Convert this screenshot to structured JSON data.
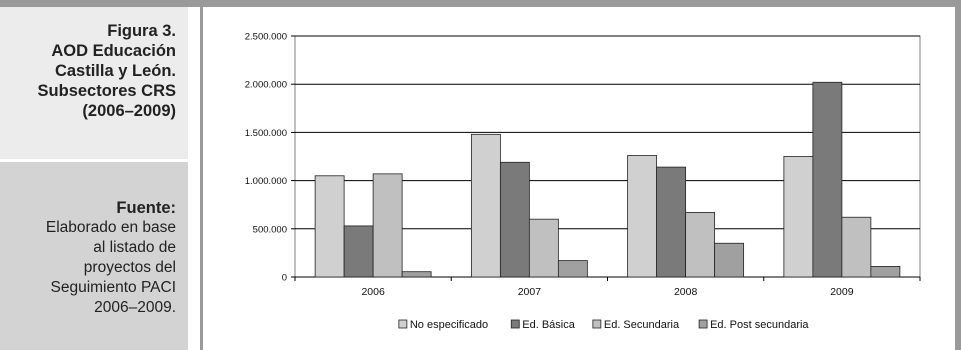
{
  "sidebar": {
    "title_lines": [
      "Figura 3.",
      "AOD Educación",
      "Castilla y León.",
      "Subsectores CRS",
      "(2006–2009)"
    ],
    "source_label": "Fuente:",
    "source_lines": [
      "Elaborado en base",
      "al listado de",
      "proyectos del",
      "Seguimiento PACI",
      "2006–2009."
    ]
  },
  "colors": {
    "frame": "#9a9a9a",
    "title_bg": "#ececec",
    "source_bg": "#d3d3d3"
  },
  "chart_data": {
    "type": "bar",
    "categories": [
      "2006",
      "2007",
      "2008",
      "2009"
    ],
    "ylim": [
      0,
      2500000
    ],
    "yticks": [
      0,
      500000,
      1000000,
      1500000,
      2000000,
      2500000
    ],
    "ytick_labels": [
      "0",
      "500.000",
      "1.000.000",
      "1.500.000",
      "2.000.000",
      "2.500.000"
    ],
    "grid": true,
    "legend_position": "bottom",
    "series": [
      {
        "name": "No especificado",
        "color": "#d0d0d0",
        "values": [
          1050000,
          1480000,
          1260000,
          1250000
        ]
      },
      {
        "name": "Ed. Básica",
        "color": "#7a7a7a",
        "values": [
          530000,
          1190000,
          1140000,
          2020000
        ]
      },
      {
        "name": "Ed. Secundaria",
        "color": "#c0c0c0",
        "values": [
          1070000,
          600000,
          670000,
          620000
        ]
      },
      {
        "name": "Ed. Post secundaria",
        "color": "#a0a0a0",
        "values": [
          55000,
          170000,
          350000,
          110000
        ]
      }
    ]
  }
}
